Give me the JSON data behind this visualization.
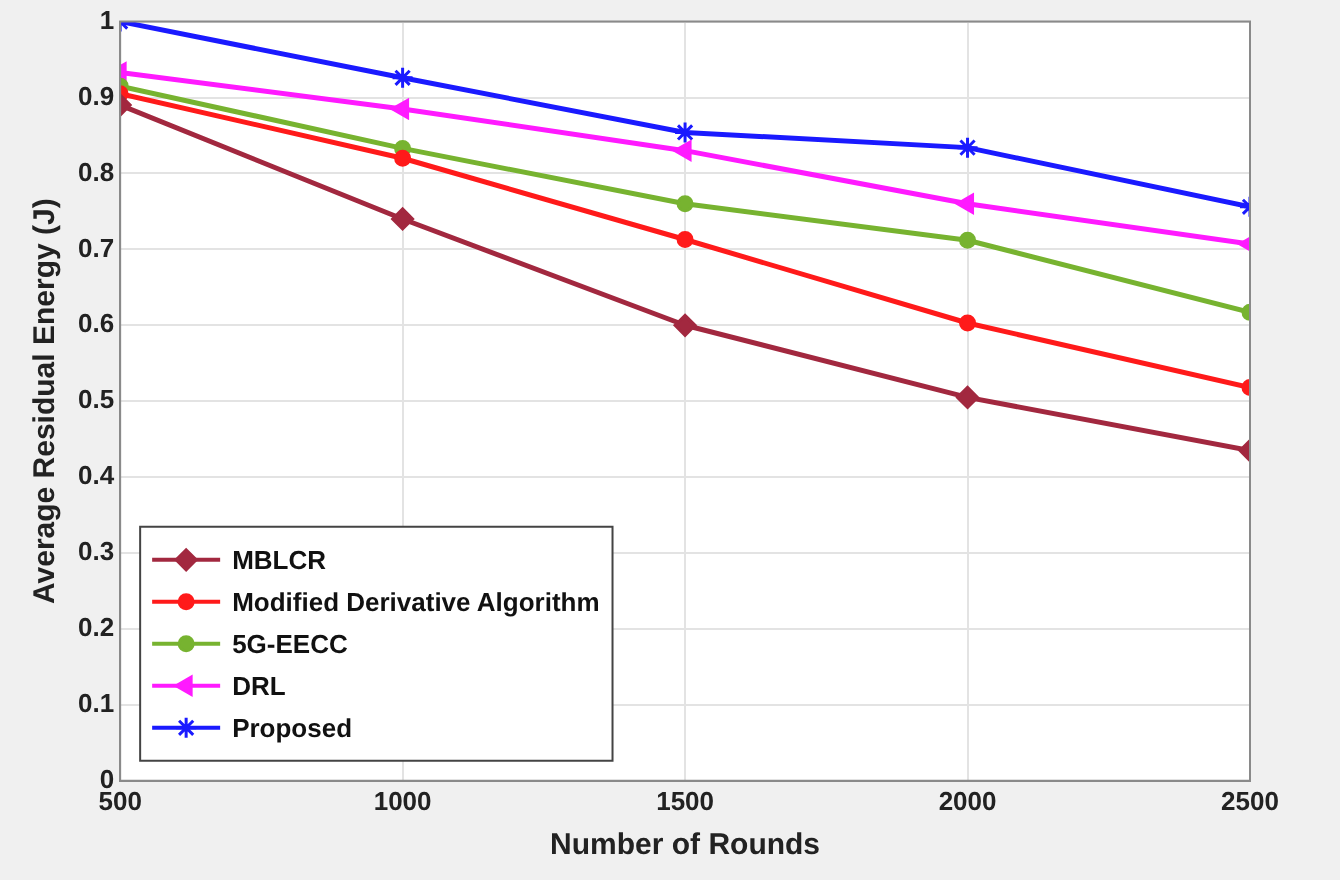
{
  "chart_data": {
    "type": "line",
    "xlabel": "Number of Rounds",
    "ylabel": "Average Residual Energy (J)",
    "x": [
      500,
      1000,
      1500,
      2000,
      2500
    ],
    "xlim": [
      500,
      2500
    ],
    "xticks": [
      500,
      1000,
      1500,
      2000,
      2500
    ],
    "ylim": [
      0,
      1
    ],
    "yticks": [
      0,
      0.1,
      0.2,
      0.3,
      0.4,
      0.5,
      0.6,
      0.7,
      0.8,
      0.9,
      1
    ],
    "grid": true,
    "legend": "bottom left",
    "line_style": "solid",
    "series": [
      {
        "name": "MBLCR",
        "color": "#a2283f",
        "marker": "diamond",
        "values": [
          0.89,
          0.74,
          0.6,
          0.505,
          0.435
        ]
      },
      {
        "name": "Modified Derivative Algorithm",
        "color": "#ff1a1a",
        "marker": "circle",
        "values": [
          0.905,
          0.82,
          0.713,
          0.603,
          0.518
        ]
      },
      {
        "name": "5G-EECC",
        "color": "#77b330",
        "marker": "circle",
        "values": [
          0.915,
          0.833,
          0.76,
          0.712,
          0.617
        ]
      },
      {
        "name": "DRL",
        "color": "#ff1aff",
        "marker": "triangle",
        "values": [
          0.933,
          0.885,
          0.83,
          0.76,
          0.707
        ]
      },
      {
        "name": "Proposed",
        "color": "#1a1aff",
        "marker": "cross",
        "values": [
          1.0,
          0.926,
          0.854,
          0.834,
          0.756
        ]
      }
    ]
  }
}
